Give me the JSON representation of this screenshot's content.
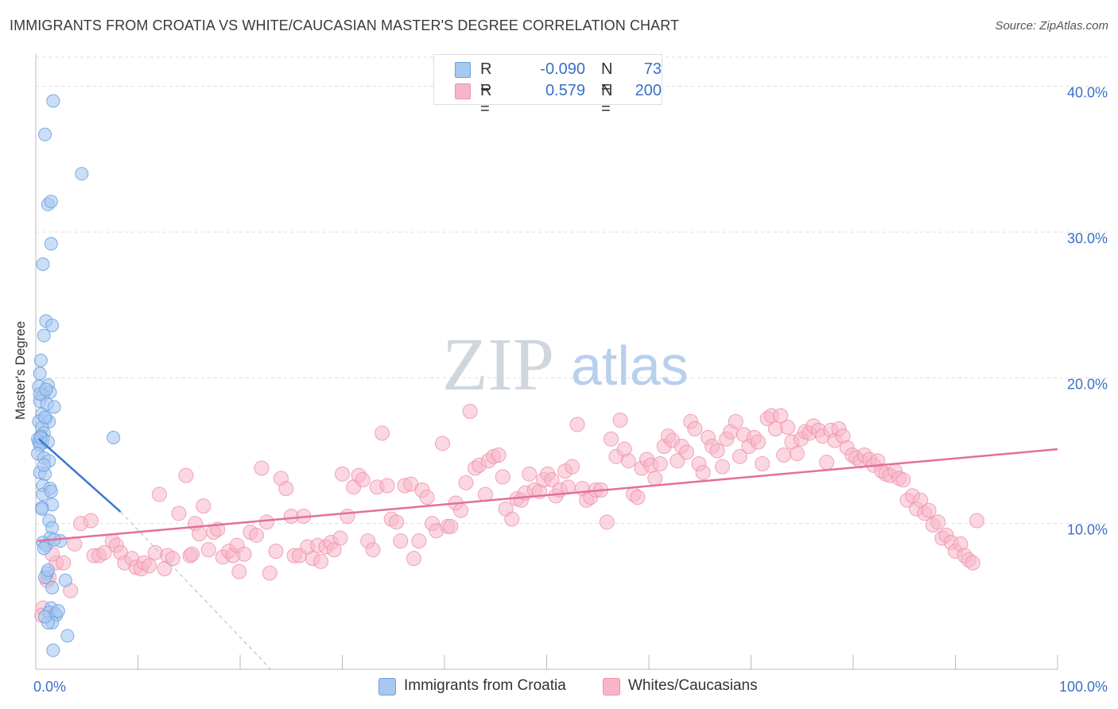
{
  "header": {
    "title": "IMMIGRANTS FROM CROATIA VS WHITE/CAUCASIAN MASTER'S DEGREE CORRELATION CHART",
    "source": "Source: ZipAtlas.com"
  },
  "watermark": {
    "zip": "ZIP",
    "atlas": "atlas"
  },
  "legend": {
    "rows": [
      {
        "r_label": "R =",
        "r_value": "-0.090",
        "n_label": "N =",
        "n_value": "73",
        "color": "#a8c8f0"
      },
      {
        "r_label": "R =",
        "r_value": "0.579",
        "n_label": "N =",
        "n_value": "200",
        "color": "#f7b6c8"
      }
    ]
  },
  "bottom_legend": [
    {
      "label": "Immigrants from Croatia",
      "color": "#a8c8f0"
    },
    {
      "label": "Whites/Caucasians",
      "color": "#f7b6c8"
    }
  ],
  "colors": {
    "blue_fill": "#a8c8f0",
    "blue_stroke": "#6a9fe0",
    "blue_line": "#3a78d0",
    "pink_fill": "#f7b6c8",
    "pink_stroke": "#ee8fab",
    "pink_line": "#e2709a",
    "tick_text": "#3a6fc8",
    "grid": "#dddddd"
  },
  "chart_data": {
    "type": "scatter",
    "title": "IMMIGRANTS FROM CROATIA VS WHITE/CAUCASIAN MASTER'S DEGREE CORRELATION CHART",
    "xlabel": "",
    "ylabel": "Master's Degree",
    "xlim": [
      0,
      100
    ],
    "ylim": [
      0,
      42
    ],
    "x_tick_labels": [
      "0.0%",
      "100.0%"
    ],
    "y_ticks": [
      10,
      20,
      30,
      40
    ],
    "y_tick_labels": [
      "10.0%",
      "20.0%",
      "30.0%",
      "40.0%"
    ],
    "grid": true,
    "series": [
      {
        "name": "Immigrants from Croatia",
        "color": "#a8c8f0",
        "points": [
          [
            1.7,
            39.0
          ],
          [
            0.9,
            36.7
          ],
          [
            4.5,
            34.0
          ],
          [
            1.2,
            31.9
          ],
          [
            1.5,
            32.1
          ],
          [
            1.5,
            29.2
          ],
          [
            0.7,
            27.8
          ],
          [
            1.0,
            23.9
          ],
          [
            1.6,
            23.6
          ],
          [
            0.8,
            22.9
          ],
          [
            0.5,
            21.2
          ],
          [
            0.4,
            20.3
          ],
          [
            1.2,
            19.5
          ],
          [
            0.3,
            19.4
          ],
          [
            1.4,
            19.0
          ],
          [
            0.7,
            18.8
          ],
          [
            0.4,
            18.4
          ],
          [
            1.1,
            18.2
          ],
          [
            1.8,
            18.0
          ],
          [
            0.6,
            17.5
          ],
          [
            1.0,
            17.2
          ],
          [
            0.3,
            17.0
          ],
          [
            1.3,
            17.0
          ],
          [
            0.6,
            16.6
          ],
          [
            0.8,
            16.2
          ],
          [
            0.5,
            16.0
          ],
          [
            0.2,
            15.8
          ],
          [
            0.7,
            15.8
          ],
          [
            0.3,
            15.6
          ],
          [
            0.6,
            15.5
          ],
          [
            0.4,
            15.4
          ],
          [
            7.6,
            15.9
          ],
          [
            0.2,
            14.8
          ],
          [
            0.8,
            14.5
          ],
          [
            1.3,
            14.3
          ],
          [
            0.4,
            13.5
          ],
          [
            0.9,
            13.4
          ],
          [
            0.7,
            12.6
          ],
          [
            1.4,
            12.4
          ],
          [
            0.7,
            12.0
          ],
          [
            1.6,
            11.3
          ],
          [
            0.6,
            11.1
          ],
          [
            1.3,
            10.2
          ],
          [
            1.6,
            9.7
          ],
          [
            1.4,
            9.0
          ],
          [
            0.7,
            8.7
          ],
          [
            1.0,
            8.5
          ],
          [
            2.4,
            8.8
          ],
          [
            0.8,
            8.3
          ],
          [
            1.1,
            6.6
          ],
          [
            0.9,
            6.3
          ],
          [
            2.9,
            6.1
          ],
          [
            1.6,
            5.6
          ],
          [
            1.5,
            4.2
          ],
          [
            1.3,
            3.9
          ],
          [
            1.9,
            3.8
          ],
          [
            2.0,
            3.7
          ],
          [
            1.6,
            3.2
          ],
          [
            1.2,
            3.2
          ],
          [
            3.1,
            2.3
          ],
          [
            1.7,
            1.3
          ],
          [
            0.5,
            15.9
          ],
          [
            0.9,
            17.3
          ],
          [
            1.2,
            15.6
          ],
          [
            0.4,
            18.9
          ],
          [
            1.0,
            19.2
          ],
          [
            0.8,
            14.0
          ],
          [
            1.5,
            12.2
          ],
          [
            0.6,
            11.0
          ],
          [
            1.8,
            8.9
          ],
          [
            1.2,
            6.8
          ],
          [
            2.2,
            4.0
          ],
          [
            0.9,
            3.6
          ]
        ],
        "trend": {
          "x": [
            0.3,
            8.3
          ],
          "y": [
            15.8,
            10.8
          ],
          "extended_x": 23.0,
          "extended_y": 0.0
        }
      },
      {
        "name": "Whites/Caucasians",
        "color": "#f7b6c8",
        "points": [
          [
            0.7,
            4.2
          ],
          [
            0.6,
            3.7
          ],
          [
            1.1,
            6.1
          ],
          [
            1.3,
            6.3
          ],
          [
            2.0,
            7.3
          ],
          [
            2.7,
            7.3
          ],
          [
            3.4,
            5.4
          ],
          [
            1.6,
            7.9
          ],
          [
            4.4,
            10.0
          ],
          [
            5.4,
            10.2
          ],
          [
            3.8,
            8.6
          ],
          [
            5.7,
            7.8
          ],
          [
            6.2,
            7.8
          ],
          [
            6.7,
            8.0
          ],
          [
            7.5,
            8.8
          ],
          [
            7.9,
            8.5
          ],
          [
            8.3,
            8.0
          ],
          [
            8.7,
            7.3
          ],
          [
            9.4,
            7.6
          ],
          [
            9.8,
            7.0
          ],
          [
            10.3,
            6.9
          ],
          [
            10.6,
            7.3
          ],
          [
            11.1,
            7.1
          ],
          [
            11.7,
            8.0
          ],
          [
            12.1,
            12.0
          ],
          [
            12.6,
            6.9
          ],
          [
            12.9,
            7.8
          ],
          [
            13.4,
            7.6
          ],
          [
            14.0,
            10.7
          ],
          [
            14.7,
            13.3
          ],
          [
            15.1,
            7.8
          ],
          [
            15.3,
            7.9
          ],
          [
            15.6,
            10.0
          ],
          [
            16.0,
            9.3
          ],
          [
            16.4,
            11.2
          ],
          [
            16.9,
            8.2
          ],
          [
            17.4,
            9.4
          ],
          [
            17.8,
            9.6
          ],
          [
            18.3,
            7.7
          ],
          [
            18.9,
            8.1
          ],
          [
            19.3,
            7.8
          ],
          [
            19.7,
            8.5
          ],
          [
            19.9,
            6.7
          ],
          [
            20.4,
            7.9
          ],
          [
            21.0,
            9.4
          ],
          [
            21.6,
            9.2
          ],
          [
            22.1,
            13.8
          ],
          [
            22.6,
            10.1
          ],
          [
            22.9,
            6.6
          ],
          [
            23.5,
            8.1
          ],
          [
            24.0,
            13.1
          ],
          [
            24.5,
            12.4
          ],
          [
            25.0,
            10.5
          ],
          [
            25.3,
            7.8
          ],
          [
            25.8,
            7.8
          ],
          [
            26.2,
            10.5
          ],
          [
            26.6,
            8.4
          ],
          [
            27.1,
            7.6
          ],
          [
            27.6,
            8.5
          ],
          [
            27.9,
            7.4
          ],
          [
            28.4,
            8.4
          ],
          [
            28.9,
            8.7
          ],
          [
            29.2,
            8.2
          ],
          [
            29.8,
            9.0
          ],
          [
            30.0,
            13.4
          ],
          [
            30.5,
            10.5
          ],
          [
            31.1,
            12.5
          ],
          [
            31.6,
            13.3
          ],
          [
            32.0,
            13.0
          ],
          [
            32.5,
            8.8
          ],
          [
            33.0,
            8.2
          ],
          [
            33.4,
            12.5
          ],
          [
            33.9,
            16.2
          ],
          [
            34.4,
            12.6
          ],
          [
            34.8,
            10.3
          ],
          [
            35.3,
            10.1
          ],
          [
            35.7,
            8.8
          ],
          [
            36.1,
            12.6
          ],
          [
            36.7,
            12.7
          ],
          [
            37.0,
            7.6
          ],
          [
            37.5,
            8.8
          ],
          [
            37.8,
            12.3
          ],
          [
            38.3,
            11.8
          ],
          [
            38.8,
            10.0
          ],
          [
            39.2,
            9.5
          ],
          [
            39.8,
            15.5
          ],
          [
            40.3,
            9.8
          ],
          [
            40.6,
            9.8
          ],
          [
            41.1,
            11.4
          ],
          [
            41.6,
            10.9
          ],
          [
            42.1,
            12.8
          ],
          [
            42.5,
            17.7
          ],
          [
            43.0,
            13.8
          ],
          [
            43.4,
            14.0
          ],
          [
            44.0,
            12.0
          ],
          [
            44.3,
            14.3
          ],
          [
            44.8,
            14.6
          ],
          [
            45.3,
            14.7
          ],
          [
            45.7,
            13.2
          ],
          [
            46.0,
            11.0
          ],
          [
            46.6,
            10.3
          ],
          [
            47.1,
            11.7
          ],
          [
            47.5,
            11.6
          ],
          [
            47.9,
            12.1
          ],
          [
            48.3,
            13.4
          ],
          [
            48.8,
            12.3
          ],
          [
            49.3,
            12.2
          ],
          [
            49.7,
            13.0
          ],
          [
            50.1,
            13.4
          ],
          [
            50.5,
            13.0
          ],
          [
            50.9,
            11.9
          ],
          [
            51.3,
            12.3
          ],
          [
            51.8,
            13.6
          ],
          [
            52.1,
            12.5
          ],
          [
            52.5,
            13.9
          ],
          [
            53.0,
            16.8
          ],
          [
            53.5,
            12.4
          ],
          [
            53.9,
            11.6
          ],
          [
            54.3,
            11.8
          ],
          [
            54.8,
            12.3
          ],
          [
            55.3,
            12.3
          ],
          [
            55.9,
            10.1
          ],
          [
            56.3,
            15.8
          ],
          [
            56.8,
            14.6
          ],
          [
            57.2,
            17.1
          ],
          [
            57.6,
            15.1
          ],
          [
            58.0,
            14.3
          ],
          [
            58.5,
            12.0
          ],
          [
            58.9,
            11.8
          ],
          [
            59.3,
            13.8
          ],
          [
            59.8,
            14.4
          ],
          [
            60.2,
            14.0
          ],
          [
            60.6,
            13.1
          ],
          [
            61.1,
            14.1
          ],
          [
            61.5,
            15.3
          ],
          [
            61.9,
            16.0
          ],
          [
            62.3,
            15.7
          ],
          [
            62.8,
            14.3
          ],
          [
            63.2,
            15.3
          ],
          [
            63.7,
            14.9
          ],
          [
            64.1,
            17.0
          ],
          [
            64.5,
            16.5
          ],
          [
            64.9,
            14.1
          ],
          [
            65.3,
            13.5
          ],
          [
            65.8,
            15.9
          ],
          [
            66.2,
            15.3
          ],
          [
            66.7,
            15.0
          ],
          [
            67.2,
            13.9
          ],
          [
            67.6,
            15.8
          ],
          [
            68.0,
            16.3
          ],
          [
            68.5,
            17.0
          ],
          [
            68.9,
            14.6
          ],
          [
            69.3,
            16.1
          ],
          [
            69.8,
            15.3
          ],
          [
            70.3,
            15.9
          ],
          [
            70.7,
            15.6
          ],
          [
            71.1,
            14.1
          ],
          [
            71.6,
            17.2
          ],
          [
            72.0,
            17.4
          ],
          [
            72.4,
            16.5
          ],
          [
            72.9,
            17.4
          ],
          [
            73.2,
            14.7
          ],
          [
            73.6,
            16.6
          ],
          [
            74.0,
            15.6
          ],
          [
            74.5,
            14.8
          ],
          [
            74.9,
            15.8
          ],
          [
            75.3,
            16.3
          ],
          [
            75.7,
            16.2
          ],
          [
            76.1,
            16.7
          ],
          [
            76.6,
            16.4
          ],
          [
            77.0,
            16.0
          ],
          [
            77.4,
            14.2
          ],
          [
            77.8,
            16.4
          ],
          [
            78.2,
            15.7
          ],
          [
            78.6,
            16.5
          ],
          [
            79.0,
            16.0
          ],
          [
            79.4,
            15.2
          ],
          [
            79.9,
            14.7
          ],
          [
            80.3,
            14.5
          ],
          [
            80.7,
            14.3
          ],
          [
            81.1,
            14.7
          ],
          [
            81.6,
            14.4
          ],
          [
            82.0,
            14.0
          ],
          [
            82.4,
            14.3
          ],
          [
            82.8,
            13.6
          ],
          [
            83.2,
            13.4
          ],
          [
            83.6,
            13.3
          ],
          [
            84.1,
            13.6
          ],
          [
            84.5,
            13.1
          ],
          [
            84.9,
            13.0
          ],
          [
            85.3,
            11.6
          ],
          [
            85.8,
            11.9
          ],
          [
            86.2,
            11.0
          ],
          [
            86.6,
            11.6
          ],
          [
            87.0,
            10.7
          ],
          [
            87.4,
            10.9
          ],
          [
            87.8,
            9.9
          ],
          [
            88.3,
            10.1
          ],
          [
            88.7,
            9.0
          ],
          [
            89.1,
            9.2
          ],
          [
            89.6,
            8.7
          ],
          [
            90.0,
            8.1
          ],
          [
            90.5,
            8.6
          ],
          [
            90.9,
            7.8
          ],
          [
            91.3,
            7.5
          ],
          [
            91.7,
            7.3
          ],
          [
            92.1,
            10.2
          ]
        ],
        "trend": {
          "x": [
            0.2,
            100.0
          ],
          "y": [
            8.8,
            15.1
          ]
        }
      }
    ]
  }
}
